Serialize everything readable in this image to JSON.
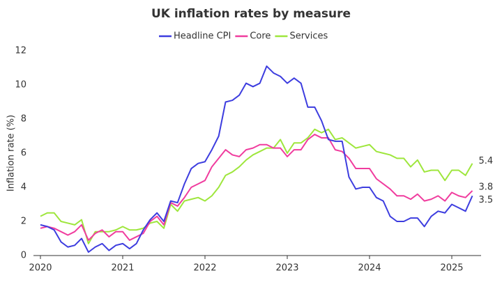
{
  "chart_data": {
    "type": "line",
    "title": "UK inflation rates by measure",
    "ylabel": "Inflation rate (%)",
    "categories": [
      "2020",
      null,
      null,
      null,
      null,
      null,
      null,
      null,
      null,
      null,
      null,
      null,
      "2021",
      null,
      null,
      null,
      null,
      null,
      null,
      null,
      null,
      null,
      null,
      null,
      "2022",
      null,
      null,
      null,
      null,
      null,
      null,
      null,
      null,
      null,
      null,
      null,
      "2023",
      null,
      null,
      null,
      null,
      null,
      null,
      null,
      null,
      null,
      null,
      null,
      "2024",
      null,
      null,
      null,
      null,
      null,
      null,
      null,
      null,
      null,
      null,
      null,
      "2025",
      null,
      null,
      null
    ],
    "series": [
      {
        "name": "Headline CPI",
        "color": "#3d3ddf",
        "values": [
          1.8,
          1.7,
          1.5,
          0.8,
          0.5,
          0.6,
          1.0,
          0.2,
          0.5,
          0.7,
          0.3,
          0.6,
          0.7,
          0.4,
          0.7,
          1.5,
          2.1,
          2.5,
          2.0,
          3.2,
          3.1,
          4.2,
          5.1,
          5.4,
          5.5,
          6.2,
          7.0,
          9.0,
          9.1,
          9.4,
          10.1,
          9.9,
          10.1,
          11.1,
          10.7,
          10.5,
          10.1,
          10.4,
          10.1,
          8.7,
          8.7,
          7.9,
          6.8,
          6.7,
          6.7,
          4.6,
          3.9,
          4.0,
          4.0,
          3.4,
          3.2,
          2.3,
          2.0,
          2.0,
          2.2,
          2.2,
          1.7,
          2.3,
          2.6,
          2.5,
          3.0,
          2.8,
          2.6,
          3.5
        ]
      },
      {
        "name": "Core",
        "color": "#f03c9e",
        "values": [
          1.6,
          1.7,
          1.6,
          1.4,
          1.2,
          1.4,
          1.8,
          0.9,
          1.3,
          1.5,
          1.1,
          1.4,
          1.4,
          0.9,
          1.1,
          1.3,
          2.0,
          2.3,
          1.8,
          3.1,
          2.9,
          3.4,
          4.0,
          4.2,
          4.4,
          5.2,
          5.7,
          6.2,
          5.9,
          5.8,
          6.2,
          6.3,
          6.5,
          6.5,
          6.3,
          6.3,
          5.8,
          6.2,
          6.2,
          6.8,
          7.1,
          6.9,
          6.9,
          6.2,
          6.1,
          5.7,
          5.1,
          5.1,
          5.1,
          4.5,
          4.2,
          3.9,
          3.5,
          3.5,
          3.3,
          3.6,
          3.2,
          3.3,
          3.5,
          3.2,
          3.7,
          3.5,
          3.4,
          3.8
        ]
      },
      {
        "name": "Services",
        "color": "#9ee63c",
        "values": [
          2.3,
          2.5,
          2.5,
          2.0,
          1.9,
          1.8,
          2.1,
          0.7,
          1.4,
          1.4,
          1.4,
          1.5,
          1.7,
          1.5,
          1.5,
          1.6,
          1.9,
          2.0,
          1.6,
          3.0,
          2.6,
          3.2,
          3.3,
          3.4,
          3.2,
          3.5,
          4.0,
          4.7,
          4.9,
          5.2,
          5.6,
          5.9,
          6.1,
          6.3,
          6.3,
          6.8,
          6.0,
          6.6,
          6.6,
          6.9,
          7.4,
          7.2,
          7.4,
          6.8,
          6.9,
          6.6,
          6.3,
          6.4,
          6.5,
          6.1,
          6.0,
          5.9,
          5.7,
          5.7,
          5.2,
          5.6,
          4.9,
          5.0,
          5.0,
          4.4,
          5.0,
          5.0,
          4.7,
          5.4
        ]
      }
    ],
    "ylim": [
      0,
      12
    ],
    "yticks": [
      0,
      2,
      4,
      6,
      8,
      10,
      12
    ],
    "grid": false
  }
}
